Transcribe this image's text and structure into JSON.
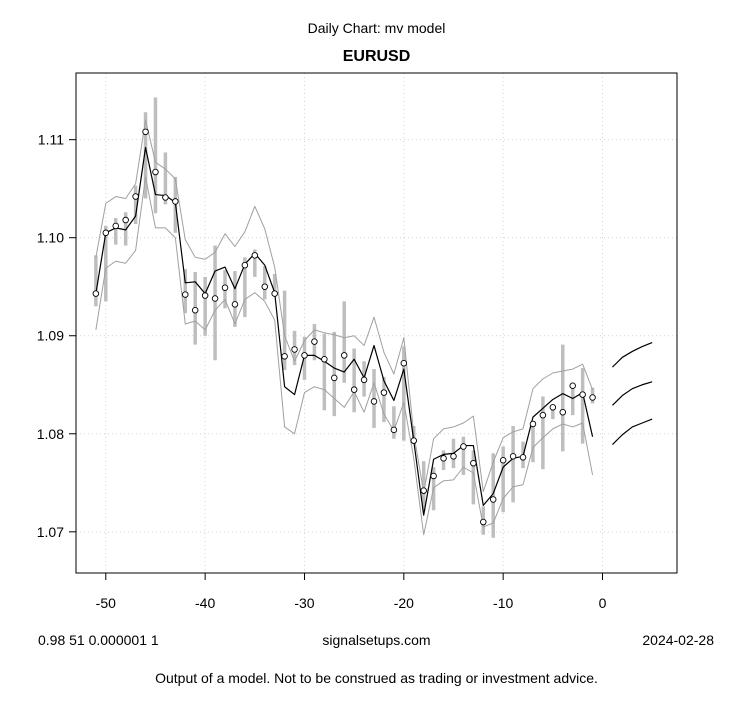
{
  "header": {
    "suptitle": "Daily Chart: mv model",
    "title": "EURUSD"
  },
  "footer": {
    "params": "0.98 51 0.000001 1",
    "site": "signalsetups.com",
    "date": "2024-02-28",
    "disclaimer": "Output of a model.  Not to be construed as trading or investment advice."
  },
  "chart_data": {
    "type": "line",
    "title": "EURUSD",
    "xlim": [
      -53,
      7.5
    ],
    "ylim": [
      1.0658,
      1.1168
    ],
    "xticks": [
      -50,
      -40,
      -30,
      -20,
      -10,
      0
    ],
    "yticks": [
      1.07,
      1.08,
      1.09,
      1.1,
      1.11
    ],
    "grid": true,
    "colors": {
      "bars": "#bebebe",
      "band": "#a0a0a0",
      "fit": "#000000",
      "forecast": "#000000"
    },
    "x": [
      -51,
      -50,
      -49,
      -48,
      -47,
      -46,
      -45,
      -44,
      -43,
      -42,
      -41,
      -40,
      -39,
      -38,
      -37,
      -36,
      -35,
      -34,
      -33,
      -32,
      -31,
      -30,
      -29,
      -28,
      -27,
      -26,
      -25,
      -24,
      -23,
      -22,
      -21,
      -20,
      -19,
      -18,
      -17,
      -16,
      -15,
      -14,
      -13,
      -12,
      -11,
      -10,
      -9,
      -8,
      -7,
      -6,
      -5,
      -4,
      -3,
      -2,
      -1
    ],
    "close": [
      1.0943,
      1.1005,
      1.1012,
      1.1018,
      1.1042,
      1.1108,
      1.1067,
      1.1041,
      1.1037,
      1.0942,
      1.0926,
      1.0941,
      1.0938,
      1.0949,
      1.0932,
      1.0972,
      1.0982,
      1.095,
      1.0943,
      1.0879,
      1.0886,
      1.088,
      1.0894,
      1.0876,
      1.0857,
      1.088,
      1.0845,
      1.0855,
      1.0833,
      1.0842,
      1.0804,
      1.0872,
      1.0793,
      1.0742,
      1.0757,
      1.0775,
      1.0777,
      1.0787,
      1.077,
      1.071,
      1.0733,
      1.0773,
      1.0777,
      1.0776,
      1.081,
      1.0819,
      1.0827,
      1.0822,
      1.0849,
      1.084,
      1.0837
    ],
    "high": [
      1.0982,
      1.1012,
      1.102,
      1.1026,
      1.1053,
      1.1128,
      1.1143,
      1.1087,
      1.1062,
      1.0968,
      1.0965,
      1.096,
      1.0992,
      1.0967,
      1.0966,
      1.098,
      1.0988,
      1.0971,
      1.0963,
      1.0946,
      1.0905,
      1.0899,
      1.0912,
      1.0902,
      1.0904,
      1.0935,
      1.0887,
      1.0874,
      1.0866,
      1.0858,
      1.0828,
      1.0889,
      1.0808,
      1.0772,
      1.0766,
      1.0783,
      1.0795,
      1.0797,
      1.0783,
      1.0726,
      1.078,
      1.0787,
      1.0808,
      1.0792,
      1.0812,
      1.0838,
      1.083,
      1.0891,
      1.0852,
      1.0867,
      1.0847
    ],
    "low": [
      1.093,
      1.0935,
      1.0993,
      1.0992,
      1.1014,
      1.104,
      1.1025,
      1.1034,
      1.1005,
      1.0923,
      1.0891,
      1.09,
      1.0875,
      1.0928,
      1.0909,
      1.0919,
      1.096,
      1.0937,
      1.094,
      1.0865,
      1.087,
      1.0855,
      1.0875,
      1.0824,
      1.0818,
      1.0852,
      1.0822,
      1.0838,
      1.0806,
      1.0812,
      1.0795,
      1.0793,
      1.079,
      1.0722,
      1.0722,
      1.0763,
      1.0765,
      1.0758,
      1.0728,
      1.0697,
      1.0694,
      1.072,
      1.073,
      1.0765,
      1.0771,
      1.0764,
      1.0815,
      1.0782,
      1.0819,
      1.079,
      1.0831
    ],
    "fit": [
      1.0943,
      1.1005,
      1.101,
      1.1008,
      1.1022,
      1.1092,
      1.1044,
      1.1043,
      1.1036,
      1.0954,
      1.0955,
      1.0943,
      1.0966,
      1.097,
      1.0948,
      1.0973,
      1.0984,
      1.0972,
      1.0944,
      1.0848,
      1.084,
      1.088,
      1.088,
      1.0874,
      1.0867,
      1.0863,
      1.0876,
      1.0857,
      1.089,
      1.0854,
      1.0834,
      1.0866,
      1.0793,
      1.0717,
      1.0774,
      1.0779,
      1.078,
      1.0788,
      1.0788,
      1.0727,
      1.0739,
      1.0766,
      1.0775,
      1.0777,
      1.0817,
      1.0826,
      1.0835,
      1.0841,
      1.0836,
      1.0842,
      1.0797
    ],
    "upper": [
      1.098,
      1.1035,
      1.1042,
      1.104,
      1.1055,
      1.112,
      1.1077,
      1.107,
      1.106,
      1.0998,
      1.098,
      1.0978,
      1.0985,
      1.1004,
      1.0991,
      1.1006,
      1.1032,
      1.1009,
      1.097,
      1.09,
      1.0874,
      1.0895,
      1.0906,
      1.0903,
      1.0901,
      1.0898,
      1.09,
      1.089,
      1.0919,
      1.0883,
      1.0861,
      1.0898,
      1.08,
      1.074,
      1.0795,
      1.0805,
      1.0807,
      1.0811,
      1.0818,
      1.0741,
      1.0771,
      1.0796,
      1.0802,
      1.0805,
      1.0846,
      1.0856,
      1.0862,
      1.0864,
      1.0866,
      1.0871,
      1.0845
    ],
    "lower": [
      1.0906,
      1.0969,
      1.0976,
      1.0974,
      1.0987,
      1.1062,
      1.101,
      1.101,
      1.1,
      1.0912,
      1.0915,
      1.0906,
      1.0926,
      1.0937,
      1.0912,
      1.0937,
      1.0944,
      1.0935,
      1.0916,
      1.0807,
      1.08,
      1.0842,
      1.0848,
      1.0845,
      1.0836,
      1.0827,
      1.0843,
      1.0822,
      1.0852,
      1.082,
      1.0803,
      1.0832,
      1.0775,
      1.0697,
      1.0745,
      1.0752,
      1.0753,
      1.0766,
      1.076,
      1.0705,
      1.0709,
      1.0734,
      1.0746,
      1.0748,
      1.0786,
      1.0796,
      1.0805,
      1.081,
      1.0807,
      1.0811,
      1.0758
    ],
    "forecast_x": [
      1,
      2,
      3,
      4,
      5
    ],
    "forecast_mid": [
      1.0829,
      1.0839,
      1.0846,
      1.085,
      1.0853
    ],
    "forecast_upper": [
      1.0868,
      1.0878,
      1.0884,
      1.0889,
      1.0893
    ],
    "forecast_lower": [
      1.0789,
      1.0799,
      1.0807,
      1.0811,
      1.0815
    ]
  }
}
